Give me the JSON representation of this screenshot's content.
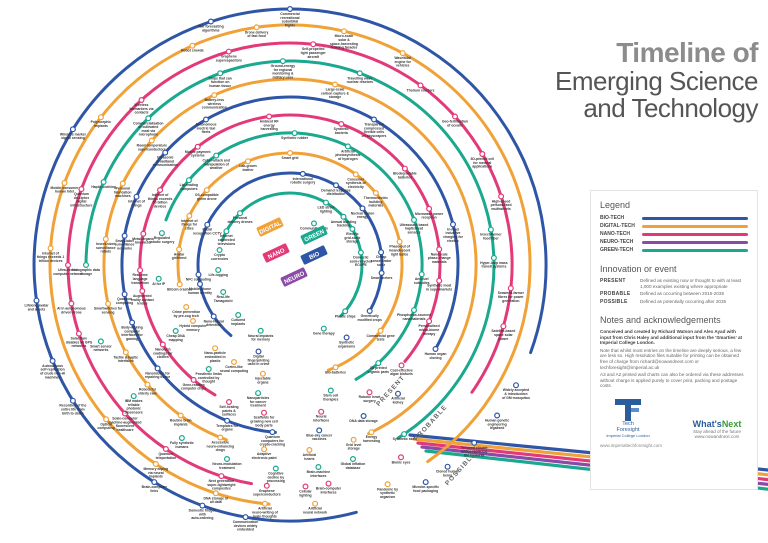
{
  "title": {
    "line1": "Timeline of",
    "line2": "Emerging Science",
    "line3": "and Technology"
  },
  "legend": {
    "heading": "Legend",
    "items": [
      {
        "label": "BIO-TECH",
        "color": "#2f56a6"
      },
      {
        "label": "DIGITAL-TECH",
        "color": "#f0a238"
      },
      {
        "label": "NANO-TECH",
        "color": "#e23a78"
      },
      {
        "label": "NEURO-TECH",
        "color": "#8a4aa6"
      },
      {
        "label": "GREEN-TECH",
        "color": "#1aa88e"
      }
    ]
  },
  "innovation": {
    "heading": "Innovation or event",
    "items": [
      {
        "key": "PRESENT",
        "desc": "Defined as existing now or thought to with at least 1,000 examples existing where appropriate"
      },
      {
        "key": "PROBABLE",
        "desc": "Defined as occurring between 2015-2035"
      },
      {
        "key": "POSSIBLE",
        "desc": "Defined as potentially occurring after 2035"
      }
    ]
  },
  "notes": {
    "heading": "Notes and acknowledgements",
    "paragraphs": [
      "Conceived and created by Richard Watson and Alex Ayad with input from Chris Haley and additional input from the 'Smarties' at Imperial College London.",
      "Note that whilst most entries on the timeline are deeply serious, a few are less so. High resolution files suitable for printing can be obtained free of charge from richard@nowandnext.com or techforesight@imperial.ac.uk",
      "A3 and A2 printed wall charts can also be ordered via these addresses without charge is applied purely to cover print, packing and postage costs."
    ]
  },
  "logos": {
    "tf_line1": "Tech",
    "tf_line2": "Foresight",
    "tf_line3": "Imperial College London",
    "wn_main": "What's",
    "wn_accent": "Next",
    "wn_tag": "Stay ahead of the future",
    "wn_url": "www.nowandnext.com"
  },
  "footer_url": "www.imperialtechforesight.com",
  "center_labels": {
    "digital": "DIGITAL",
    "green": "GREEN",
    "nano": "NANO",
    "bio": "BIO",
    "neuro": "NEURO"
  },
  "era_labels": {
    "present": "PRESENT",
    "probable": "PROBABLE",
    "possible": "POSSIBLE"
  },
  "rings": [
    {
      "track": "green",
      "r": 72,
      "a0": 200,
      "a1": 405,
      "color": "#1aa88e"
    },
    {
      "track": "bio",
      "r": 92,
      "a0": 130,
      "a1": 390,
      "color": "#2f56a6"
    },
    {
      "track": "digital",
      "r": 112,
      "a0": 170,
      "a1": 430,
      "color": "#f0a238"
    },
    {
      "track": "green",
      "r": 132,
      "a0": 200,
      "a1": 420,
      "color": "#1aa88e"
    },
    {
      "track": "nano",
      "r": 150,
      "a0": 120,
      "a1": 400,
      "color": "#e23a78"
    },
    {
      "track": "bio",
      "r": 168,
      "a0": 95,
      "a1": 390,
      "color": "#2f56a6"
    },
    {
      "track": "digital",
      "r": 186,
      "a0": 110,
      "a1": 425,
      "color": "#f0a238"
    },
    {
      "track": "green",
      "r": 204,
      "a0": 180,
      "a1": 418,
      "color": "#1aa88e"
    },
    {
      "track": "nano",
      "r": 222,
      "a0": 100,
      "a1": 395,
      "color": "#e23a78"
    },
    {
      "track": "digital",
      "r": 240,
      "a0": 95,
      "a1": 415,
      "color": "#f0a238"
    },
    {
      "track": "bio",
      "r": 256,
      "a0": 75,
      "a1": 380,
      "color": "#2f56a6"
    }
  ],
  "events": [
    {
      "text": "Commercial recreational suborbital flights",
      "r": 256,
      "a": 270
    },
    {
      "text": "Micro-scale solar & space-harvesting building facades",
      "r": 240,
      "a": 283
    },
    {
      "text": "Wave/tidal engine for vehicles",
      "r": 240,
      "a": 298
    },
    {
      "text": "Thorium reactors",
      "r": 222,
      "a": 306
    },
    {
      "text": "Geo-fertilisation of oceans",
      "r": 222,
      "a": 318
    },
    {
      "text": "3D-printed cell for medical applications",
      "r": 222,
      "a": 330
    },
    {
      "text": "High-speed personalised multiwheels",
      "r": 222,
      "a": 342
    },
    {
      "text": "Insect-farmer food fiber",
      "r": 204,
      "a": 350
    },
    {
      "text": "Hyper-loop mass transit systems",
      "r": 204,
      "a": 358
    },
    {
      "text": "Seaweed-farmer fibres for power generation",
      "r": 222,
      "a": 6
    },
    {
      "text": "Satellite-based space solar power",
      "r": 222,
      "a": 16
    },
    {
      "text": "Widely accepted & introduction of GM mosquitos",
      "r": 256,
      "a": 28
    },
    {
      "text": "Human genetic engineering legalised",
      "r": 256,
      "a": 36
    },
    {
      "text": "Tethered climate bridge replacing the monorail",
      "r": 256,
      "a": 44
    },
    {
      "text": "Cloned human being",
      "r": 256,
      "a": 52
    },
    {
      "text": "Microbe-specific food packaging",
      "r": 256,
      "a": 58
    },
    {
      "text": "Pandemic by synthetic organism",
      "r": 240,
      "a": 66
    },
    {
      "text": "Brain-computer interfaces",
      "r": 222,
      "a": 80
    },
    {
      "text": "Global inflation database",
      "r": 204,
      "a": 72
    },
    {
      "text": "Energy harvesting",
      "r": 186,
      "a": 64
    },
    {
      "text": "Artificial kidney",
      "r": 168,
      "a": 50
    },
    {
      "text": "Cost-effective algae biofuels",
      "r": 150,
      "a": 42
    },
    {
      "text": "Human organ cloning",
      "r": 168,
      "a": 30
    },
    {
      "text": "Personalised micro-biome therapy",
      "r": 150,
      "a": 22
    },
    {
      "text": "Phosphorus-sourced nanomaterials",
      "r": 132,
      "a": 20
    },
    {
      "text": "Anti-fuel subsidies",
      "r": 132,
      "a": 4
    },
    {
      "text": "Nanoscale phase-change materials",
      "r": 150,
      "a": 354
    },
    {
      "text": "Microwave power reception",
      "r": 150,
      "a": 338
    },
    {
      "text": "In-road inductive charging for electric vehicles",
      "r": 168,
      "a": 346
    },
    {
      "text": "Synthetic meat in supermarkets",
      "r": 150,
      "a": 6
    },
    {
      "text": "Ultrasound based haptic/heat sensors",
      "r": 132,
      "a": 340
    },
    {
      "text": "Phase-out of incandescent light bulbs",
      "r": 112,
      "a": 348
    },
    {
      "text": "Cheap concentrator solar",
      "r": 92,
      "a": 352
    },
    {
      "text": "Smart meters",
      "r": 92,
      "a": 5
    },
    {
      "text": "Thermoelectric building materials",
      "r": 112,
      "a": 320
    },
    {
      "text": "Biodegradable batteries",
      "r": 150,
      "a": 320
    },
    {
      "text": "Consumer synthesis of electricity",
      "r": 112,
      "a": 306
    },
    {
      "text": "Artificial photosynthesis of hydrogen",
      "r": 132,
      "a": 296
    },
    {
      "text": "Synthetic bacteria",
      "r": 150,
      "a": 290
    },
    {
      "text": "Transparent compressed flexible cells on skyscrapers",
      "r": 168,
      "a": 300
    },
    {
      "text": "Large-scale carbon capture & storage",
      "r": 186,
      "a": 284
    },
    {
      "text": "Ground-energy for regional monitoring & military uses",
      "r": 204,
      "a": 268
    },
    {
      "text": "Self-propelled light passenger aircraft",
      "r": 222,
      "a": 276
    },
    {
      "text": "Travelling wave nuclear reactors",
      "r": 204,
      "a": 290
    },
    {
      "text": "Drone delivery of fast food",
      "r": 240,
      "a": 262
    },
    {
      "text": "Graphene supercapacitors",
      "r": 222,
      "a": 254
    },
    {
      "text": "War forecasting algorithms",
      "r": 256,
      "a": 252
    },
    {
      "text": "Robot crowds",
      "r": 240,
      "a": 246
    },
    {
      "text": "Chips that can function on human tissue",
      "r": 204,
      "a": 250
    },
    {
      "text": "Battery-less wireless communication",
      "r": 186,
      "a": 246
    },
    {
      "text": "Autonomous electric taxi fleets",
      "r": 168,
      "a": 240
    },
    {
      "text": "Ambient RF energy harvesting",
      "r": 150,
      "a": 262
    },
    {
      "text": "Synthetic rubber",
      "r": 132,
      "a": 272
    },
    {
      "text": "Smart grid",
      "r": 112,
      "a": 270
    },
    {
      "text": "International robotic surgery",
      "r": 92,
      "a": 278
    },
    {
      "text": "LED street lighting",
      "r": 72,
      "a": 300
    },
    {
      "text": "Electric grid-scale storage",
      "r": 72,
      "a": 330
    },
    {
      "text": "Domestic semi-recycled ECOPE",
      "r": 72,
      "a": 350
    },
    {
      "text": "Annual building tracking",
      "r": 72,
      "a": 318
    },
    {
      "text": "Nuclear fusion energy",
      "r": 92,
      "a": 322
    },
    {
      "text": "Demand response distribution",
      "r": 92,
      "a": 300
    },
    {
      "text": "Lab-grown leather",
      "r": 112,
      "a": 248
    },
    {
      "text": "Cyber-attack and manipulation of weather",
      "r": 132,
      "a": 236
    },
    {
      "text": "Mobile payment systems",
      "r": 150,
      "a": 232
    },
    {
      "text": "Ultrasonic broadband communication",
      "r": 168,
      "a": 222
    },
    {
      "text": "Room-temperature superconductors",
      "r": 186,
      "a": 222
    },
    {
      "text": "Commercialisation of cultivated meat via microphone",
      "r": 204,
      "a": 226
    },
    {
      "text": "Wireless biomarkers via contacts",
      "r": 222,
      "a": 228
    },
    {
      "text": "Polymorphic implants",
      "r": 240,
      "a": 218
    },
    {
      "text": "Wireless marker signal sensing",
      "r": 256,
      "a": 212
    },
    {
      "text": "Mobile consumer human Intel",
      "r": 240,
      "a": 200
    },
    {
      "text": "Quantum de-cipher digital infrastructure",
      "r": 222,
      "a": 200
    },
    {
      "text": "Haptic clothing",
      "r": 204,
      "a": 204
    },
    {
      "text": "Personal fabrication machines",
      "r": 186,
      "a": 206
    },
    {
      "text": "Internet of things",
      "r": 168,
      "a": 204
    },
    {
      "text": "Internet of things exceeds 50 billion devices",
      "r": 150,
      "a": 210
    },
    {
      "text": "Lip-reading computers",
      "r": 132,
      "a": 220
    },
    {
      "text": "OS-compatible green drone",
      "r": 112,
      "a": 222
    },
    {
      "text": "Internet of things for cities",
      "r": 112,
      "a": 206
    },
    {
      "text": "Facial recognition CCTV",
      "r": 92,
      "a": 206
    },
    {
      "text": "Internet connected televisions",
      "r": 72,
      "a": 208
    },
    {
      "text": "Personal delivery drones",
      "r": 72,
      "a": 226
    },
    {
      "text": "Crypto currencies",
      "r": 72,
      "a": 192
    },
    {
      "text": "Life-logging",
      "r": 72,
      "a": 176
    },
    {
      "text": "Community grids",
      "r": 48,
      "a": 300
    },
    {
      "text": "Mobile-phone human identity",
      "r": 92,
      "a": 168
    },
    {
      "text": "Avatar girlfriend",
      "r": 112,
      "a": 188
    },
    {
      "text": "Regulated robotic surgery",
      "r": 132,
      "a": 194
    },
    {
      "text": "Metal-organic bioreactor",
      "r": 150,
      "a": 192
    },
    {
      "text": "Smart-label surveillance networks",
      "r": 168,
      "a": 190
    },
    {
      "text": "Insect-sized surveillance robots",
      "r": 186,
      "a": 188
    },
    {
      "text": "Internet of things exceeds 1 trillion devices",
      "r": 240,
      "a": 184
    },
    {
      "text": "Holographic data storage",
      "r": 204,
      "a": 180
    },
    {
      "text": "Ultra-secure computer network",
      "r": 222,
      "a": 180
    },
    {
      "text": "AI in autonomous driven drone",
      "r": 222,
      "a": 170
    },
    {
      "text": "Lifelong avatar and assets",
      "r": 256,
      "a": 172
    },
    {
      "text": "Solar flare disables all GPS networks",
      "r": 222,
      "a": 162
    },
    {
      "text": "Autonomous self-replication of crude non-AI machines",
      "r": 256,
      "a": 158
    },
    {
      "text": "Smartwatches for sensing",
      "r": 186,
      "a": 168
    },
    {
      "text": "Quantum computing",
      "r": 168,
      "a": 170
    },
    {
      "text": "Augmented reality contact lenses",
      "r": 150,
      "a": 170
    },
    {
      "text": "AI for IP",
      "r": 132,
      "a": 174
    },
    {
      "text": "Bitcoin crashes",
      "r": 112,
      "a": 170
    },
    {
      "text": "NFC computing",
      "r": 92,
      "a": 174
    },
    {
      "text": "Real-time language translation",
      "r": 150,
      "a": 178
    },
    {
      "text": "Body-locking computer interfaces for gaming",
      "r": 168,
      "a": 160
    },
    {
      "text": "Crime prevention by pre-cog tech",
      "r": 112,
      "a": 158
    },
    {
      "text": "Smart sensor networks",
      "r": 204,
      "a": 158
    },
    {
      "text": "Tactile & haptic interfaces",
      "r": 186,
      "a": 152
    },
    {
      "text": "Recording of the entire life from birth to death",
      "r": 256,
      "a": 148
    },
    {
      "text": "Optical computing",
      "r": 240,
      "a": 140
    },
    {
      "text": "Scale-computer machine-augmented fluorescent healthcare",
      "r": 222,
      "a": 138
    },
    {
      "text": "IBM makes reliable photonic biosensors",
      "r": 204,
      "a": 140
    },
    {
      "text": "Robots for elderly care",
      "r": 186,
      "a": 140
    },
    {
      "text": "Nanorobots for repairing tissue",
      "r": 168,
      "a": 142
    },
    {
      "text": "Nanotech coatings for clothes",
      "r": 150,
      "a": 148
    },
    {
      "text": "Cheap DNA mapping",
      "r": 132,
      "a": 150
    },
    {
      "text": "Hybrid computer memory",
      "r": 112,
      "a": 150
    },
    {
      "text": "Nano-Neural detection",
      "r": 92,
      "a": 146
    },
    {
      "text": "Real-life Tamagotchi",
      "r": 72,
      "a": 158
    },
    {
      "text": "Cultured implants",
      "r": 72,
      "a": 136
    },
    {
      "text": "Nano-particle embedded in plastic",
      "r": 112,
      "a": 132
    },
    {
      "text": "Prosthetic limbs controlled by thought",
      "r": 132,
      "a": 128
    },
    {
      "text": "Gene-reading computer chips",
      "r": 150,
      "a": 130
    },
    {
      "text": "Routine brain implants",
      "r": 186,
      "a": 126
    },
    {
      "text": "Fully synthetic humans",
      "r": 204,
      "a": 122
    },
    {
      "text": "Quantum teleportation",
      "r": 222,
      "a": 124
    },
    {
      "text": "Memory wiping via neural implants",
      "r": 240,
      "a": 124
    },
    {
      "text": "Brain-computer links",
      "r": 256,
      "a": 122
    },
    {
      "text": "Self-healing paints & surfaces",
      "r": 150,
      "a": 114
    },
    {
      "text": "Templates for organs",
      "r": 168,
      "a": 112
    },
    {
      "text": "Accessible neuro-enhancing drugs",
      "r": 186,
      "a": 112
    },
    {
      "text": "Neuro-modulation treatment",
      "r": 204,
      "a": 108
    },
    {
      "text": "Next generation super-lightweight composites",
      "r": 222,
      "a": 108
    },
    {
      "text": "DNA storage of all data",
      "r": 240,
      "a": 108
    },
    {
      "text": "Domestic fridges with auto-ordering",
      "r": 256,
      "a": 110
    },
    {
      "text": "Communication devices widely embedded",
      "r": 256,
      "a": 100
    },
    {
      "text": "Artificial neuro-writing of brain thoughts",
      "r": 240,
      "a": 96
    },
    {
      "text": "Graphene superconductors",
      "r": 222,
      "a": 96
    },
    {
      "text": "Cognitive decline by processing",
      "r": 204,
      "a": 94
    },
    {
      "text": "Adaptive electronic paint",
      "r": 186,
      "a": 98
    },
    {
      "text": "Quantum computers for crypto-cracking",
      "r": 168,
      "a": 96
    },
    {
      "text": "Scaffolds for growing new cell body parts",
      "r": 150,
      "a": 100
    },
    {
      "text": "Nanoparticles for cancer treatment",
      "r": 132,
      "a": 104
    },
    {
      "text": "Injectable organs",
      "r": 112,
      "a": 104
    },
    {
      "text": "Digital fingerprinting used in crime",
      "r": 92,
      "a": 110
    },
    {
      "text": "Neural implants for memory",
      "r": 72,
      "a": 114
    },
    {
      "text": "Cortex-like neural computing",
      "r": 112,
      "a": 120
    },
    {
      "text": "Gene therapy",
      "r": 72,
      "a": 62
    },
    {
      "text": "Synthetic organisms",
      "r": 92,
      "a": 52
    },
    {
      "text": "Bio-batteries",
      "r": 112,
      "a": 66
    },
    {
      "text": "Stem cell therapies",
      "r": 132,
      "a": 72
    },
    {
      "text": "Neural interfaces",
      "r": 150,
      "a": 78
    },
    {
      "text": "Blue-sky cancer vaccines",
      "r": 168,
      "a": 80
    },
    {
      "text": "Artificial hearts",
      "r": 186,
      "a": 84
    },
    {
      "text": "Brain-machine interfaces",
      "r": 204,
      "a": 82
    },
    {
      "text": "Cellular lighting",
      "r": 222,
      "a": 86
    },
    {
      "text": "Artificial neural network",
      "r": 240,
      "a": 84
    },
    {
      "text": "Plastic chips",
      "r": 72,
      "a": 40
    },
    {
      "text": "Genetically modified crops",
      "r": 92,
      "a": 30
    },
    {
      "text": "Commercial gene tests",
      "r": 112,
      "a": 36
    },
    {
      "text": "3D printed organic parts",
      "r": 132,
      "a": 48
    },
    {
      "text": "Robotic heart surgery",
      "r": 150,
      "a": 58
    },
    {
      "text": "DNA data storage",
      "r": 168,
      "a": 64
    },
    {
      "text": "Grid level storage",
      "r": 186,
      "a": 70
    },
    {
      "text": "Synthetic skin",
      "r": 204,
      "a": 56
    },
    {
      "text": "Bionic eyes",
      "r": 222,
      "a": 60
    }
  ]
}
